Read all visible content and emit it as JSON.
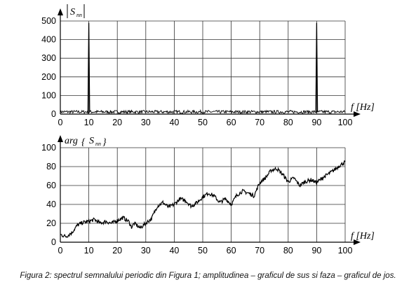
{
  "caption": "Figura 2: spectrul semnalului periodic din Figura 1; amplitudinea – graficul de sus si faza – graficul de jos.",
  "chart_data": [
    {
      "type": "line",
      "ylabel_main": "S",
      "ylabel_sub": "nn",
      "xlabel": "f [Hz]",
      "xlim": [
        0,
        100
      ],
      "ylim": [
        0,
        500
      ],
      "x_ticks": [
        "0",
        "10",
        "20",
        "30",
        "40",
        "50",
        "60",
        "70",
        "80",
        "90",
        "100"
      ],
      "y_ticks": [
        "0",
        "100",
        "200",
        "300",
        "400",
        "500"
      ],
      "grid": true,
      "noise_level": 12,
      "peaks": [
        {
          "x": 10,
          "y": 490
        },
        {
          "x": 90,
          "y": 490
        }
      ]
    },
    {
      "type": "line",
      "ylabel_prefix": "arg",
      "ylabel_main": "S",
      "ylabel_sub": "nn",
      "xlabel": "f [Hz]",
      "xlim": [
        0,
        100
      ],
      "ylim": [
        0,
        100
      ],
      "x_ticks": [
        "0",
        "10",
        "20",
        "30",
        "40",
        "50",
        "60",
        "70",
        "80",
        "90",
        "100"
      ],
      "y_ticks": [
        "0",
        "20",
        "40",
        "60",
        "80",
        "100"
      ],
      "grid": true,
      "x": [
        0,
        2,
        4,
        6,
        8,
        10,
        12,
        14,
        16,
        18,
        20,
        22,
        24,
        25,
        26,
        28,
        30,
        32,
        34,
        36,
        38,
        40,
        42,
        44,
        46,
        48,
        50,
        52,
        54,
        56,
        58,
        60,
        62,
        64,
        66,
        68,
        70,
        72,
        74,
        76,
        78,
        80,
        82,
        84,
        86,
        88,
        90,
        92,
        94,
        96,
        98,
        100
      ],
      "values": [
        8,
        6,
        10,
        18,
        21,
        22,
        24,
        20,
        22,
        20,
        23,
        26,
        22,
        16,
        20,
        15,
        20,
        25,
        38,
        42,
        37,
        40,
        46,
        44,
        38,
        42,
        48,
        52,
        49,
        42,
        46,
        40,
        50,
        54,
        52,
        49,
        63,
        68,
        76,
        78,
        72,
        64,
        68,
        60,
        64,
        66,
        63,
        68,
        72,
        76,
        81,
        85
      ]
    }
  ]
}
